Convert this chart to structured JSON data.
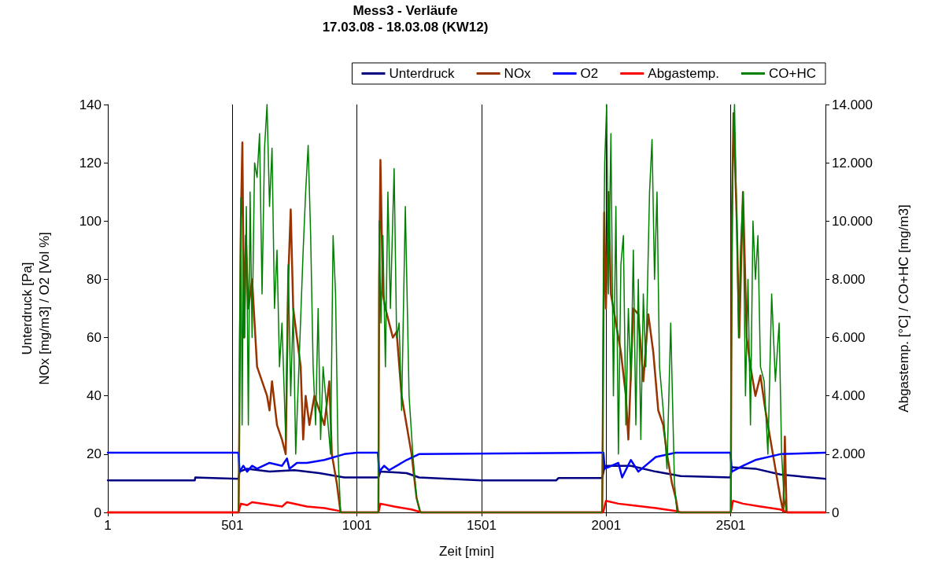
{
  "chart_data": {
    "type": "line",
    "title": "Mess3 - Verläufe",
    "subtitle": "17.03.08 - 18.03.08 (KW12)",
    "xlabel": "Zeit [min]",
    "ylabel": "Unterdruck [Pa]\nNOx [mg/m3] / O2 [Vol %]",
    "y2label": "Abgastemp. [°C] / CO+HC [mg/m3]",
    "xlim": [
      1,
      2881
    ],
    "xticks": [
      1,
      501,
      1001,
      1501,
      2001,
      2501
    ],
    "ylim": [
      0,
      140
    ],
    "yticks": [
      0,
      20,
      40,
      60,
      80,
      100,
      120,
      140
    ],
    "y2lim": [
      0,
      14000
    ],
    "y2ticks": [
      0,
      {
        "value": 2000,
        "label": "2.000"
      },
      {
        "value": 4000,
        "label": "4.000"
      },
      {
        "value": 6000,
        "label": "6.000"
      },
      {
        "value": 8000,
        "label": "8.000"
      },
      {
        "value": 10000,
        "label": "10.000"
      },
      {
        "value": 12000,
        "label": "12.000"
      },
      {
        "value": 14000,
        "label": "14.000"
      }
    ],
    "grid": "x",
    "legend": "top",
    "marker": "none",
    "line_style": "solid",
    "series": [
      {
        "name": "Unterdruck",
        "color": "#000080",
        "x": [
          1,
          350,
          352,
          525,
          530,
          560,
          650,
          750,
          850,
          950,
          1087,
          1095,
          1200,
          1250,
          1500,
          1800,
          1810,
          1985,
          1995,
          2100,
          2200,
          2300,
          2500,
          2505,
          2600,
          2700,
          2881
        ],
        "values": [
          11,
          11,
          12,
          11.5,
          14,
          15,
          14,
          14.5,
          13.5,
          12,
          12,
          14,
          13.5,
          12,
          11,
          11,
          11.8,
          11.8,
          16,
          16,
          14,
          12.5,
          12,
          15.5,
          15,
          13,
          11.5
        ]
      },
      {
        "name": "NOx",
        "color": "#993300",
        "x": [
          1,
          526,
          535,
          541,
          548,
          555,
          565,
          580,
          600,
          620,
          640,
          650,
          660,
          680,
          700,
          715,
          725,
          735,
          745,
          760,
          775,
          785,
          795,
          810,
          830,
          850,
          870,
          890,
          900,
          920,
          935,
          1087,
          1090,
          1095,
          1105,
          1115,
          1130,
          1145,
          1160,
          1180,
          1200,
          1220,
          1240,
          1255,
          1985,
          1993,
          2000,
          2010,
          2020,
          2040,
          2060,
          2080,
          2090,
          2110,
          2130,
          2150,
          2170,
          2190,
          2210,
          2230,
          2245,
          2265,
          2280,
          2290,
          2501,
          2505,
          2512,
          2525,
          2535,
          2550,
          2565,
          2580,
          2600,
          2620,
          2640,
          2660,
          2680,
          2700,
          2712,
          2718,
          2725,
          2881
        ],
        "values": [
          0,
          0,
          100,
          127,
          60,
          95,
          70,
          80,
          50,
          45,
          40,
          35,
          45,
          30,
          25,
          20,
          80,
          104,
          70,
          60,
          50,
          25,
          40,
          30,
          40,
          35,
          30,
          45,
          20,
          10,
          0,
          0,
          80,
          121,
          75,
          70,
          65,
          60,
          62,
          40,
          30,
          20,
          5,
          0,
          0,
          103,
          70,
          110,
          75,
          65,
          55,
          40,
          25,
          70,
          68,
          45,
          68,
          55,
          35,
          30,
          20,
          10,
          5,
          0,
          0,
          100,
          137,
          100,
          60,
          110,
          60,
          50,
          40,
          47,
          35,
          25,
          15,
          5,
          0,
          26,
          0,
          0
        ]
      },
      {
        "name": "O2",
        "color": "#0000ff",
        "x": [
          1,
          525,
          530,
          545,
          560,
          580,
          600,
          650,
          700,
          720,
          730,
          760,
          800,
          870,
          950,
          1000,
          1085,
          1090,
          1110,
          1130,
          1200,
          1250,
          1990,
          1995,
          2050,
          2065,
          2100,
          2130,
          2200,
          2280,
          2500,
          2505,
          2550,
          2600,
          2700,
          2881
        ],
        "values": [
          20.5,
          20.5,
          14,
          16,
          14,
          16,
          15,
          17,
          16,
          18.5,
          15,
          17,
          17,
          18,
          20,
          20.5,
          20.5,
          14,
          16,
          14.5,
          18,
          20,
          20.5,
          15,
          17,
          12,
          18,
          14,
          19,
          20.5,
          20.5,
          14,
          16,
          18,
          20,
          20.5
        ]
      },
      {
        "name": "Abgastemp.",
        "color": "#ff0000",
        "axis": "y2",
        "x": [
          1,
          525,
          535,
          560,
          580,
          700,
          720,
          800,
          870,
          930,
          940,
          1087,
          1095,
          1150,
          1220,
          1260,
          1989,
          2000,
          2050,
          2100,
          2200,
          2280,
          2300,
          2501,
          2510,
          2550,
          2620,
          2700,
          2730,
          2881
        ],
        "values": [
          0,
          0,
          300,
          250,
          350,
          200,
          350,
          200,
          150,
          50,
          0,
          0,
          300,
          200,
          100,
          0,
          0,
          400,
          300,
          250,
          150,
          50,
          0,
          0,
          400,
          300,
          200,
          100,
          0,
          0
        ]
      },
      {
        "name": "CO+HC",
        "color": "#008000",
        "axis": "y2",
        "x": [
          526,
          530,
          535,
          540,
          545,
          550,
          557,
          565,
          572,
          580,
          590,
          600,
          610,
          620,
          630,
          640,
          650,
          660,
          670,
          680,
          690,
          700,
          715,
          725,
          735,
          745,
          755,
          770,
          785,
          795,
          805,
          815,
          825,
          835,
          845,
          855,
          865,
          875,
          885,
          895,
          905,
          915,
          925,
          935,
          1087,
          1090,
          1097,
          1105,
          1115,
          1125,
          1135,
          1150,
          1160,
          1170,
          1180,
          1195,
          1210,
          1225,
          1240,
          1255,
          1985,
          1990,
          1995,
          2003,
          2010,
          2020,
          2030,
          2040,
          2050,
          2060,
          2070,
          2080,
          2090,
          2100,
          2110,
          2120,
          2130,
          2140,
          2150,
          2160,
          2175,
          2185,
          2195,
          2205,
          2215,
          2230,
          2245,
          2260,
          2275,
          2285,
          2501,
          2503,
          2510,
          2516,
          2525,
          2532,
          2540,
          2550,
          2560,
          2570,
          2580,
          2590,
          2600,
          2610,
          2620,
          2635,
          2650,
          2665,
          2680,
          2695,
          2705,
          2715,
          2725
        ],
        "values": [
          0,
          6000,
          10800,
          3000,
          9000,
          6000,
          10500,
          3000,
          11000,
          6000,
          12000,
          11500,
          13000,
          7500,
          12500,
          14000,
          10500,
          12500,
          7000,
          9000,
          5000,
          6500,
          2500,
          8500,
          4000,
          7000,
          2000,
          5500,
          9000,
          11000,
          12600,
          9500,
          5000,
          3000,
          7000,
          2500,
          5000,
          4000,
          3000,
          2000,
          9500,
          7500,
          2000,
          0,
          0,
          10000,
          6500,
          9500,
          5000,
          11000,
          7000,
          11800,
          6000,
          6500,
          3500,
          10500,
          4000,
          2000,
          500,
          0,
          0,
          8000,
          12000,
          14000,
          7500,
          13000,
          4000,
          10500,
          2000,
          8500,
          9500,
          3000,
          7000,
          4500,
          9000,
          3000,
          8000,
          2500,
          7500,
          5000,
          11000,
          12800,
          8000,
          11000,
          5000,
          3500,
          1500,
          6500,
          1000,
          0,
          0,
          5000,
          12500,
          14000,
          10000,
          6000,
          9000,
          11000,
          4000,
          8000,
          3000,
          10000,
          8000,
          9500,
          5000,
          4500,
          2000,
          7500,
          4500,
          6500,
          2000,
          500,
          0
        ]
      }
    ]
  }
}
